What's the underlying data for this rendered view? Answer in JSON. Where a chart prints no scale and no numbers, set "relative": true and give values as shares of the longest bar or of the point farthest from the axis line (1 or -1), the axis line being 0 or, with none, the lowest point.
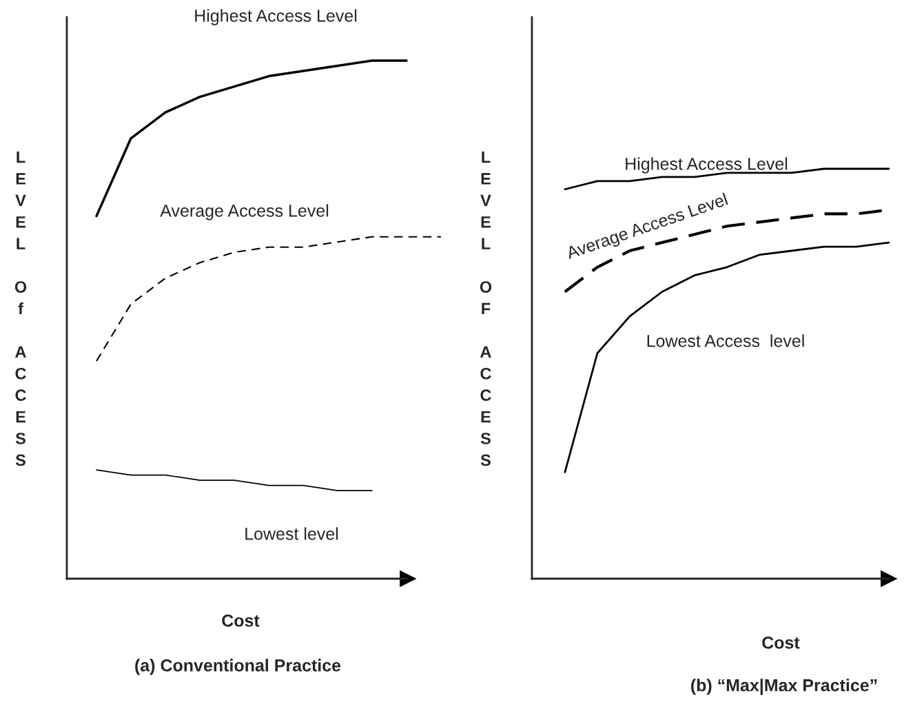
{
  "chart_data": [
    {
      "type": "line",
      "relative": true,
      "title": "(a) Conventional Practice",
      "xlabel": "Cost",
      "ylabel": "LEVEL Of ACCESS",
      "marker": "none",
      "categories": [
        null,
        null,
        null,
        null,
        null,
        null,
        null,
        null,
        null,
        null,
        null
      ],
      "series": [
        {
          "name": "Highest Access Level",
          "color": "#000000",
          "line_style": "solid",
          "values": [
            0.7,
            0.85,
            0.9,
            0.93,
            0.95,
            0.97,
            0.98,
            0.99,
            1.0,
            1.0,
            null
          ]
        },
        {
          "name": "Average Access Level",
          "color": "#000000",
          "line_style": "dashed",
          "values": [
            0.42,
            0.53,
            0.58,
            0.61,
            0.63,
            0.64,
            0.64,
            0.65,
            0.66,
            0.66,
            0.66
          ]
        },
        {
          "name": "Lowest level",
          "color": "#000000",
          "line_style": "solid",
          "values": [
            0.21,
            0.2,
            0.2,
            0.19,
            0.19,
            0.18,
            0.18,
            0.17,
            0.17,
            null,
            null
          ]
        }
      ]
    },
    {
      "type": "line",
      "relative": true,
      "title": "(b) “Max|Max Practice”",
      "xlabel": "Cost",
      "ylabel": "LEVEL OF ACCESS",
      "marker": "none",
      "categories": [
        null,
        null,
        null,
        null,
        null,
        null,
        null,
        null,
        null,
        null,
        null
      ],
      "series": [
        {
          "name": "Highest Access Level",
          "color": "#000000",
          "line_style": "solid",
          "values": [
            0.95,
            0.97,
            0.97,
            0.98,
            0.98,
            0.99,
            0.99,
            0.99,
            1.0,
            1.0,
            1.0
          ]
        },
        {
          "name": "Average Access Level",
          "color": "#000000",
          "line_style": "dashed",
          "values": [
            0.7,
            0.76,
            0.8,
            0.82,
            0.84,
            0.86,
            0.87,
            0.88,
            0.89,
            0.89,
            0.9
          ]
        },
        {
          "name": "Lowest Access  level",
          "color": "#000000",
          "line_style": "solid",
          "values": [
            0.26,
            0.55,
            0.64,
            0.7,
            0.74,
            0.76,
            0.79,
            0.8,
            0.81,
            0.81,
            0.82
          ]
        }
      ]
    }
  ]
}
